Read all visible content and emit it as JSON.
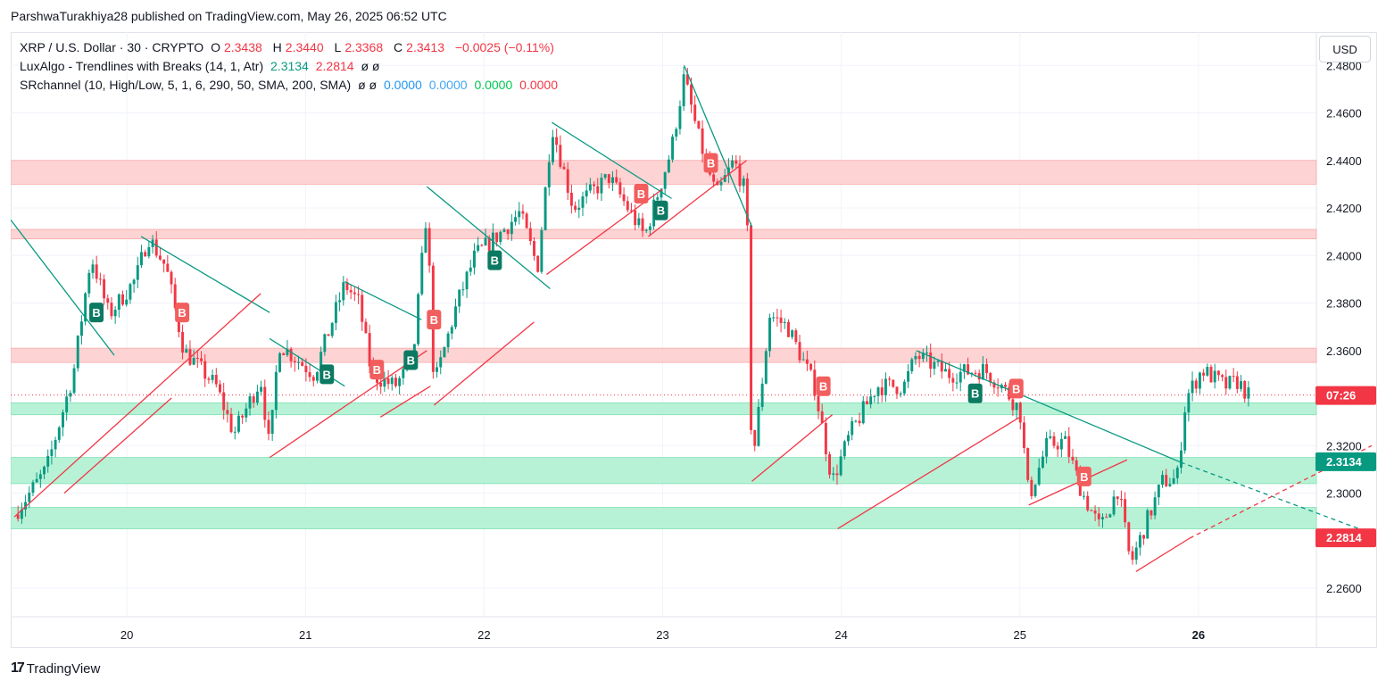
{
  "header": {
    "publish_line": "ParshwaTurakhiya28 published on TradingView.com, May 26, 2025 06:52 UTC"
  },
  "legend": {
    "symbol": "XRP / U.S. Dollar · 30 · CRYPTO",
    "o_label": "O",
    "o_value": "2.3438",
    "h_label": "H",
    "h_value": "2.3440",
    "l_label": "L",
    "l_value": "2.3368",
    "c_label": "C",
    "c_value": "2.3413",
    "change": "−0.0025 (−0.11%)",
    "indicator1": "LuxAlgo - Trendlines with Breaks (14, 1, Atr)",
    "ind1_v1": "2.3134",
    "ind1_v2": "2.2814",
    "ind1_v3": "ø ø",
    "indicator2": "SRchannel (10, High/Low, 5, 1, 6, 290, 50, SMA, 200, SMA)",
    "ind2_null": "ø ø",
    "ind2_v1": "0.0000",
    "ind2_v2": "0.0000",
    "ind2_v3": "0.0000",
    "ind2_v4": "0.0000"
  },
  "currency_button": "USD",
  "footer": {
    "logo_text": "TradingView",
    "logo_mark": "17"
  },
  "colors": {
    "up": "#089981",
    "down": "#f23645",
    "resist_zone": "#fdd3d3",
    "support_zone": "#b7f2d6",
    "trendline_down": "#089981",
    "trendline_up": "#f23645"
  },
  "chart_data": {
    "type": "candlestick",
    "ylim": [
      2.248,
      2.494
    ],
    "xlim_days": [
      19.35,
      27.0
    ],
    "yticks": [
      "2.4800",
      "2.4600",
      "2.4400",
      "2.4200",
      "2.4000",
      "2.3800",
      "2.3600",
      "2.3200",
      "2.3000",
      "2.2600"
    ],
    "ytick_values": [
      2.48,
      2.46,
      2.44,
      2.42,
      2.4,
      2.38,
      2.36,
      2.32,
      2.3,
      2.26
    ],
    "xticks": [
      {
        "day": 20,
        "label": "20"
      },
      {
        "day": 21,
        "label": "21"
      },
      {
        "day": 22,
        "label": "22"
      },
      {
        "day": 23,
        "label": "23"
      },
      {
        "day": 24,
        "label": "24"
      },
      {
        "day": 25,
        "label": "25"
      },
      {
        "day": 26,
        "label": "26"
      }
    ],
    "price_labels": [
      {
        "value": 2.3413,
        "text": "07:26",
        "color": "#f23645"
      },
      {
        "value": 2.3134,
        "text": "2.3134",
        "color": "#089981"
      },
      {
        "value": 2.2814,
        "text": "2.2814",
        "color": "#f23645"
      }
    ],
    "zones": [
      {
        "low": 2.43,
        "high": 2.44,
        "kind": "resistance"
      },
      {
        "low": 2.407,
        "high": 2.411,
        "kind": "resistance"
      },
      {
        "low": 2.355,
        "high": 2.361,
        "kind": "resistance"
      },
      {
        "low": 2.333,
        "high": 2.338,
        "kind": "support"
      },
      {
        "low": 2.304,
        "high": 2.315,
        "kind": "support"
      },
      {
        "low": 2.285,
        "high": 2.294,
        "kind": "support"
      }
    ],
    "path_points": [
      [
        19.37,
        2.291
      ],
      [
        19.55,
        2.31
      ],
      [
        19.7,
        2.35
      ],
      [
        19.8,
        2.4
      ],
      [
        19.9,
        2.375
      ],
      [
        20.05,
        2.39
      ],
      [
        20.12,
        2.408
      ],
      [
        20.22,
        2.395
      ],
      [
        20.32,
        2.36
      ],
      [
        20.5,
        2.345
      ],
      [
        20.6,
        2.325
      ],
      [
        20.75,
        2.348
      ],
      [
        20.8,
        2.318
      ],
      [
        20.85,
        2.363
      ],
      [
        21.05,
        2.35
      ],
      [
        21.22,
        2.388
      ],
      [
        21.3,
        2.38
      ],
      [
        21.37,
        2.35
      ],
      [
        21.5,
        2.345
      ],
      [
        21.6,
        2.355
      ],
      [
        21.68,
        2.42
      ],
      [
        21.72,
        2.345
      ],
      [
        21.85,
        2.38
      ],
      [
        21.95,
        2.4
      ],
      [
        22.1,
        2.41
      ],
      [
        22.2,
        2.418
      ],
      [
        22.3,
        2.395
      ],
      [
        22.38,
        2.455
      ],
      [
        22.5,
        2.42
      ],
      [
        22.7,
        2.433
      ],
      [
        22.9,
        2.408
      ],
      [
        23.05,
        2.445
      ],
      [
        23.12,
        2.475
      ],
      [
        23.2,
        2.45
      ],
      [
        23.3,
        2.425
      ],
      [
        23.4,
        2.44
      ],
      [
        23.47,
        2.425
      ],
      [
        23.5,
        2.31
      ],
      [
        23.6,
        2.375
      ],
      [
        23.7,
        2.37
      ],
      [
        23.85,
        2.345
      ],
      [
        23.95,
        2.305
      ],
      [
        24.05,
        2.325
      ],
      [
        24.2,
        2.345
      ],
      [
        24.35,
        2.345
      ],
      [
        24.42,
        2.358
      ],
      [
        24.6,
        2.35
      ],
      [
        24.8,
        2.352
      ],
      [
        24.9,
        2.345
      ],
      [
        25.0,
        2.335
      ],
      [
        25.05,
        2.298
      ],
      [
        25.15,
        2.32
      ],
      [
        25.25,
        2.322
      ],
      [
        25.35,
        2.3
      ],
      [
        25.45,
        2.285
      ],
      [
        25.55,
        2.302
      ],
      [
        25.62,
        2.27
      ],
      [
        25.72,
        2.29
      ],
      [
        25.8,
        2.305
      ],
      [
        25.88,
        2.306
      ],
      [
        25.93,
        2.34
      ],
      [
        26.02,
        2.352
      ],
      [
        26.15,
        2.345
      ],
      [
        26.22,
        2.347
      ],
      [
        26.28,
        2.341
      ]
    ],
    "trendlines_down": [
      [
        [
          19.35,
          2.415
        ],
        [
          19.93,
          2.358
        ]
      ],
      [
        [
          20.08,
          2.408
        ],
        [
          20.8,
          2.376
        ]
      ],
      [
        [
          20.8,
          2.365
        ],
        [
          21.22,
          2.345
        ]
      ],
      [
        [
          21.22,
          2.389
        ],
        [
          21.65,
          2.373
        ]
      ],
      [
        [
          21.68,
          2.429
        ],
        [
          22.37,
          2.386
        ]
      ],
      [
        [
          22.38,
          2.456
        ],
        [
          23.05,
          2.424
        ]
      ],
      [
        [
          23.12,
          2.48
        ],
        [
          23.5,
          2.412
        ]
      ],
      [
        [
          24.42,
          2.36
        ],
        [
          25.9,
          2.313
        ]
      ],
      [
        [
          25.9,
          2.313
        ],
        [
          26.97,
          2.283
        ]
      ]
    ],
    "trendlines_up": [
      [
        [
          19.37,
          2.29
        ],
        [
          20.75,
          2.384
        ]
      ],
      [
        [
          19.65,
          2.3
        ],
        [
          20.25,
          2.34
        ]
      ],
      [
        [
          20.8,
          2.315
        ],
        [
          21.68,
          2.36
        ]
      ],
      [
        [
          21.42,
          2.332
        ],
        [
          21.7,
          2.345
        ]
      ],
      [
        [
          21.72,
          2.337
        ],
        [
          22.28,
          2.372
        ]
      ],
      [
        [
          22.35,
          2.392
        ],
        [
          23.0,
          2.428
        ]
      ],
      [
        [
          22.92,
          2.408
        ],
        [
          23.47,
          2.44
        ]
      ],
      [
        [
          23.5,
          2.305
        ],
        [
          23.95,
          2.333
        ]
      ],
      [
        [
          23.98,
          2.285
        ],
        [
          25.0,
          2.332
        ]
      ],
      [
        [
          25.05,
          2.295
        ],
        [
          25.6,
          2.314
        ]
      ],
      [
        [
          25.65,
          2.267
        ],
        [
          25.95,
          2.281
        ]
      ],
      [
        [
          25.95,
          2.281
        ],
        [
          26.97,
          2.32
        ]
      ]
    ],
    "signals": [
      {
        "day": 19.83,
        "price": 2.376,
        "text": "B",
        "type": "buy"
      },
      {
        "day": 20.31,
        "price": 2.376,
        "text": "B",
        "type": "sell"
      },
      {
        "day": 21.12,
        "price": 2.35,
        "text": "B",
        "type": "buy"
      },
      {
        "day": 21.4,
        "price": 2.352,
        "text": "B",
        "type": "sell"
      },
      {
        "day": 21.59,
        "price": 2.356,
        "text": "B",
        "type": "buy"
      },
      {
        "day": 21.72,
        "price": 2.373,
        "text": "B",
        "type": "sell"
      },
      {
        "day": 22.06,
        "price": 2.398,
        "text": "B",
        "type": "buy"
      },
      {
        "day": 22.88,
        "price": 2.426,
        "text": "B",
        "type": "sell"
      },
      {
        "day": 22.99,
        "price": 2.419,
        "text": "B",
        "type": "buy"
      },
      {
        "day": 23.27,
        "price": 2.439,
        "text": "B",
        "type": "sell"
      },
      {
        "day": 23.9,
        "price": 2.345,
        "text": "B",
        "type": "sell"
      },
      {
        "day": 24.75,
        "price": 2.342,
        "text": "B",
        "type": "buy"
      },
      {
        "day": 24.98,
        "price": 2.344,
        "text": "B",
        "type": "sell"
      },
      {
        "day": 25.36,
        "price": 2.307,
        "text": "B",
        "type": "sell"
      }
    ]
  }
}
